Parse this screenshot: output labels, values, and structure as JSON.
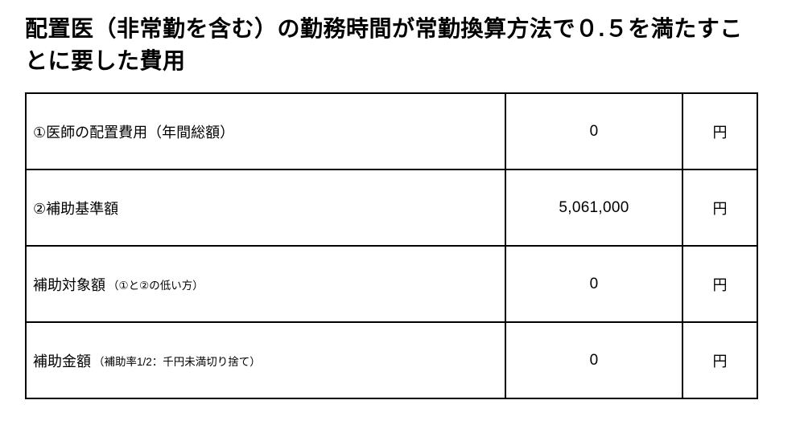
{
  "title": "配置医（非常勤を含む）の勤務時間が常勤換算方法で０.５を満たすことに要した費用",
  "table": {
    "rows": [
      {
        "label": "①医師の配置費用（年間総額）",
        "note": "",
        "amount": "0",
        "unit": "円"
      },
      {
        "label": "②補助基準額",
        "note": "",
        "amount": "5,061,000",
        "unit": "円"
      },
      {
        "label": "補助対象額",
        "note": "（①と②の低い方）",
        "amount": "0",
        "unit": "円"
      },
      {
        "label": "補助金額",
        "note": "（補助率1/2：千円未満切り捨て）",
        "amount": "0",
        "unit": "円"
      }
    ]
  }
}
